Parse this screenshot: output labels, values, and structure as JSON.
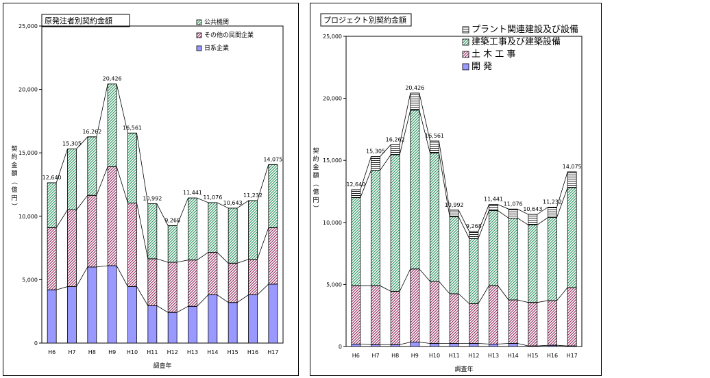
{
  "chart_data": [
    {
      "type": "bar",
      "stacked": true,
      "title": "原発注者別契約金額",
      "xlabel": "調査年",
      "ylabel": "契約金額（億円）",
      "ylim": [
        0,
        25000
      ],
      "yticks": [
        "0",
        "5,000",
        "10,000",
        "15,000",
        "20,000",
        "25,000"
      ],
      "categories": [
        "H6",
        "H7",
        "H8",
        "H9",
        "H10",
        "H11",
        "H12",
        "H13",
        "H14",
        "H15",
        "H16",
        "H17"
      ],
      "totals_labels": [
        "12,640",
        "15,305",
        "16,262",
        "20,426",
        "16,561",
        "10,992",
        "9,268",
        "11,441",
        "11,076",
        "10,643",
        "11,232",
        "14,075"
      ],
      "totals": [
        12640,
        15305,
        16262,
        20426,
        16561,
        10992,
        9268,
        11441,
        11076,
        10643,
        11232,
        14075
      ],
      "series": [
        {
          "name": "日系企業",
          "values": [
            4200,
            4450,
            6000,
            6100,
            4450,
            2950,
            2420,
            2900,
            3800,
            3200,
            3800,
            4650
          ],
          "color": "#9999ff",
          "pattern": "solid"
        },
        {
          "name": "その他の民間企業",
          "values": [
            4900,
            6050,
            5650,
            7800,
            6600,
            3700,
            3950,
            3650,
            3350,
            3100,
            2800,
            4450
          ],
          "color": "#993366",
          "pattern": "diagonal"
        },
        {
          "name": "公共機関",
          "values": [
            3540,
            4805,
            4612,
            6526,
            5511,
            4342,
            2898,
            4891,
            3926,
            4343,
            4632,
            4975
          ],
          "color": "#339966",
          "pattern": "diagonal"
        }
      ],
      "legend_position": "top-right"
    },
    {
      "type": "bar",
      "stacked": true,
      "title": "プロジェクト別契約金額",
      "xlabel": "調査年",
      "ylabel": "契約金額（億円）",
      "ylim": [
        0,
        25000
      ],
      "yticks": [
        "0",
        "5,000",
        "10,000",
        "15,000",
        "20,000",
        "25,000"
      ],
      "categories": [
        "H6",
        "H7",
        "H8",
        "H9",
        "H10",
        "H11",
        "H12",
        "H13",
        "H14",
        "H15",
        "H16",
        "H17"
      ],
      "totals_labels": [
        "12,640",
        "15,305",
        "16,262",
        "20,426",
        "16,561",
        "10,992",
        "9,268",
        "11,441",
        "11,076",
        "10,643",
        "11,232",
        "14,075"
      ],
      "totals": [
        12640,
        15305,
        16262,
        20426,
        16561,
        10992,
        9268,
        11441,
        11076,
        10643,
        11232,
        14075
      ],
      "series": [
        {
          "name": "開 発",
          "values": [
            200,
            150,
            150,
            350,
            250,
            250,
            250,
            200,
            250,
            50,
            100,
            50
          ],
          "color": "#9999ff",
          "pattern": "solid"
        },
        {
          "name": "土 木 工 事",
          "values": [
            4700,
            4750,
            4300,
            5900,
            5000,
            4000,
            3200,
            4700,
            3500,
            3500,
            3600,
            4700
          ],
          "color": "#993366",
          "pattern": "diagonal"
        },
        {
          "name": "建築工事及び建築設備",
          "values": [
            7100,
            9300,
            11000,
            12800,
            10350,
            6200,
            5250,
            6050,
            6600,
            6250,
            6700,
            8050
          ],
          "color": "#339966",
          "pattern": "diagonal"
        },
        {
          "name": "プラント関連建設及び設備",
          "values": [
            640,
            1105,
            812,
            1376,
            961,
            542,
            568,
            491,
            726,
            843,
            832,
            1275
          ],
          "color": "#000000",
          "pattern": "horizontal"
        }
      ],
      "legend_position": "top-right"
    }
  ]
}
